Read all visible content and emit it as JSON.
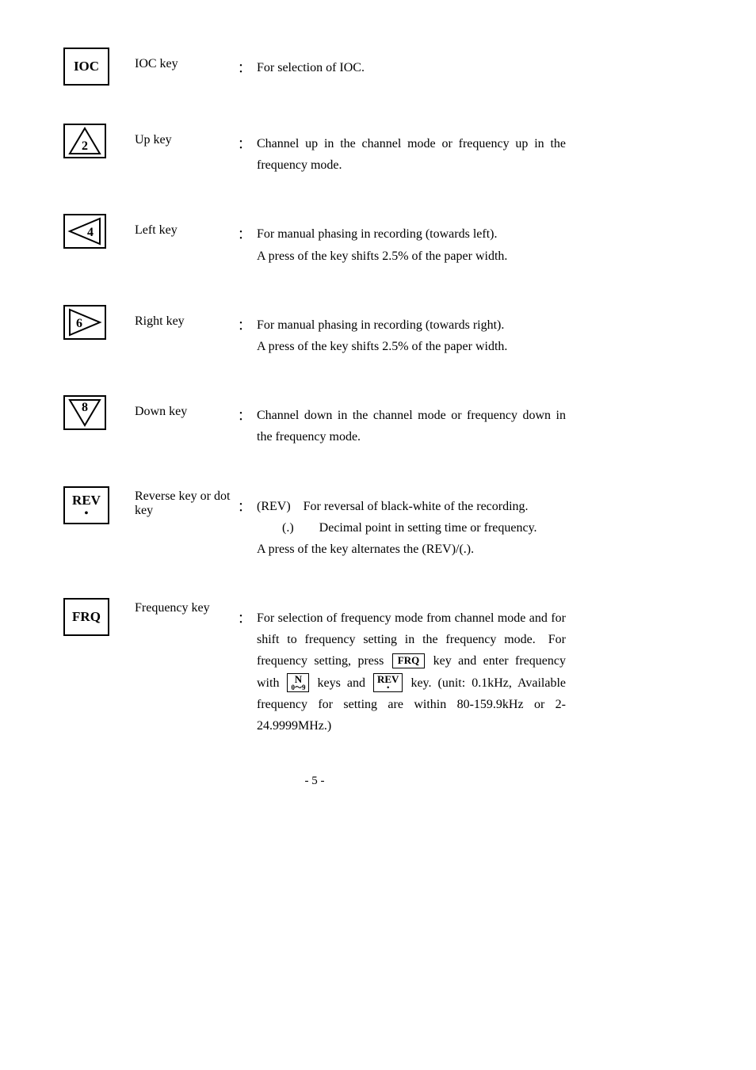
{
  "entries": [
    {
      "icon": "IOC",
      "keyname": "IOC key",
      "desc_lines": [
        "For selection of IOC."
      ]
    },
    {
      "icon": "up",
      "keyname": "Up key",
      "desc_lines": [
        "Channel up in the channel mode or frequency up in the frequency mode."
      ]
    },
    {
      "icon": "left",
      "keyname": "Left key",
      "desc_lines": [
        "For manual phasing in recording (towards left).",
        "A press of the key shifts 2.5% of the paper width."
      ]
    },
    {
      "icon": "right",
      "keyname": "Right key",
      "desc_lines": [
        "For manual phasing in recording (towards right).",
        "A press of the key shifts 2.5% of the paper width."
      ]
    },
    {
      "icon": "down",
      "keyname": "Down key",
      "desc_lines": [
        "Channel down in the channel mode or frequency down in the frequency mode."
      ]
    },
    {
      "icon": "REVdot",
      "keyname": "Reverse key or dot key",
      "desc_lines": [
        "(REV) For reversal of black-white of the recording.",
        "(.)  Decimal point in setting time or frequency.",
        "A press of the key alternates the (REV)/(.)."
      ],
      "desc_special": "rev"
    },
    {
      "icon": "FRQ",
      "keyname": "Frequency key",
      "desc_special": "frq",
      "frq_text": {
        "a": "For selection of frequency mode from channel mode and for shift to frequency setting in the frequency mode. For frequency setting, press ",
        "b": " key and enter frequency with ",
        "c": " keys and ",
        "d": " key. (unit: 0.1kHz, Available frequency for setting are within 80-159.9kHz or 2-24.9999MHz.)"
      }
    }
  ],
  "inline_keys": {
    "frq": "FRQ",
    "n09_top": "N",
    "n09_bot": "0～9",
    "rev_top": "REV",
    "rev_bot": "•"
  },
  "page_num": "- 5 -"
}
